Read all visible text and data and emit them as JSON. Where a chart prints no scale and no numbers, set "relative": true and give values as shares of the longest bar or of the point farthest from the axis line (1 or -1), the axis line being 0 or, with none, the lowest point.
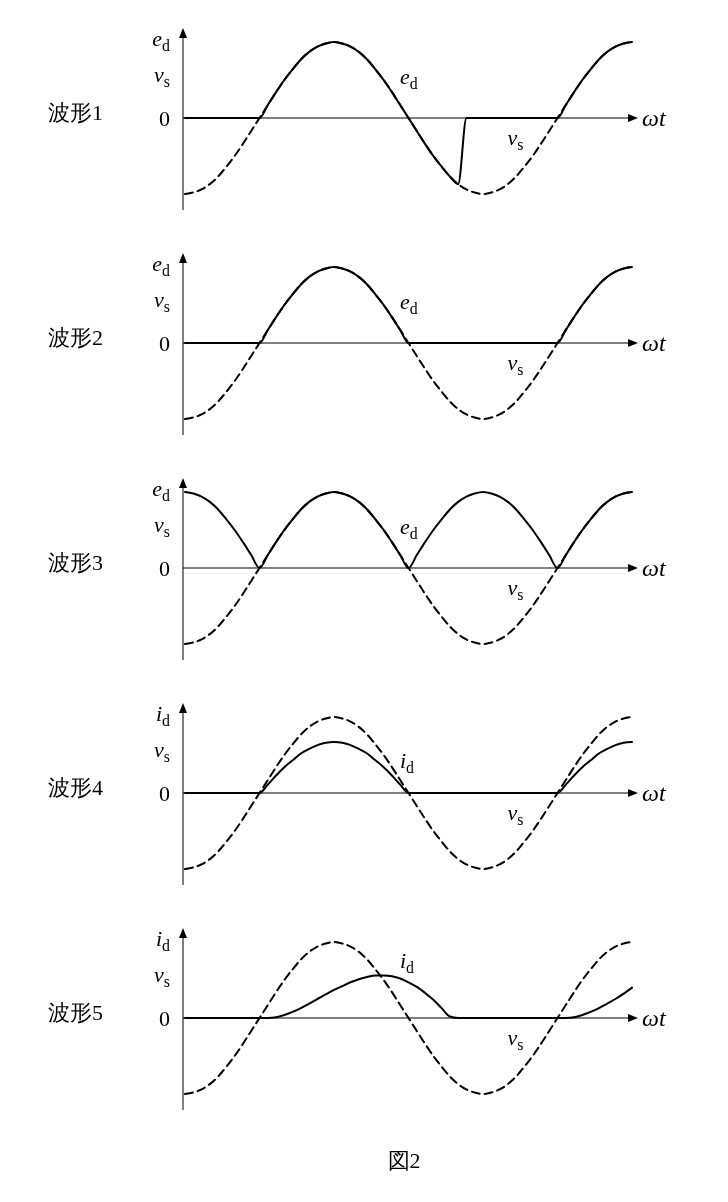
{
  "chart_data": [
    {
      "type": "line",
      "title": "波形1",
      "xlabel": "ωt",
      "ylabel": "e$_{d}$ v$_{s}$",
      "relative": true,
      "grid": false,
      "annotations": [
        "0"
      ],
      "categories": [
        null,
        null,
        null,
        null,
        null,
        null,
        null,
        null,
        null,
        null,
        null,
        null,
        null,
        null,
        null,
        null,
        null,
        null,
        null,
        null,
        null,
        null,
        null,
        null,
        null,
        null,
        null,
        null,
        null,
        null,
        null,
        null,
        null,
        null,
        null,
        null,
        null,
        null,
        null,
        null,
        null,
        null,
        null,
        null,
        null,
        null,
        null,
        null,
        null,
        null,
        null,
        null,
        null,
        null,
        null
      ],
      "series": [
        {
          "name": "e$_{d}$",
          "color": "#000000",
          "line_style": "solid",
          "values": [
            0,
            0,
            0,
            0,
            0,
            0,
            0,
            0,
            0,
            0,
            0.17,
            0.34,
            0.5,
            0.64,
            0.77,
            0.87,
            0.94,
            0.98,
            1,
            0.98,
            0.94,
            0.87,
            0.77,
            0.64,
            0.5,
            0.34,
            0.17,
            0,
            -0.17,
            -0.34,
            -0.5,
            -0.64,
            -0.77,
            -0.87,
            0,
            0,
            0,
            0,
            0,
            0,
            0,
            0,
            0,
            0,
            0,
            0,
            0.17,
            0.34,
            0.5,
            0.64,
            0.77,
            0.87,
            0.94,
            0.98,
            1
          ]
        },
        {
          "name": "v$_{s}$",
          "color": "#000000",
          "line_style": "dashed",
          "values": [
            -1,
            -0.98,
            -0.94,
            -0.87,
            -0.77,
            -0.64,
            -0.5,
            -0.34,
            -0.17,
            0,
            0.17,
            0.34,
            0.5,
            0.64,
            0.77,
            0.87,
            0.94,
            0.98,
            1,
            0.98,
            0.94,
            0.87,
            0.77,
            0.64,
            0.5,
            0.34,
            0.17,
            0,
            -0.17,
            -0.34,
            -0.5,
            -0.64,
            -0.77,
            -0.87,
            -0.94,
            -0.98,
            -1,
            -0.98,
            -0.94,
            -0.87,
            -0.77,
            -0.64,
            -0.5,
            -0.34,
            -0.17,
            0,
            0.17,
            0.34,
            0.5,
            0.64,
            0.77,
            0.87,
            0.94,
            0.98,
            1
          ]
        }
      ]
    },
    {
      "type": "line",
      "title": "波形2",
      "xlabel": "ωt",
      "ylabel": "e$_{d}$ v$_{s}$",
      "relative": true,
      "grid": false,
      "annotations": [
        "0"
      ],
      "categories": [
        null,
        null,
        null,
        null,
        null,
        null,
        null,
        null,
        null,
        null,
        null,
        null,
        null,
        null,
        null,
        null,
        null,
        null,
        null,
        null,
        null,
        null,
        null,
        null,
        null,
        null,
        null,
        null,
        null,
        null,
        null,
        null,
        null,
        null,
        null,
        null,
        null,
        null,
        null,
        null,
        null,
        null,
        null,
        null,
        null,
        null,
        null,
        null,
        null,
        null,
        null,
        null,
        null,
        null,
        null
      ],
      "series": [
        {
          "name": "e$_{d}$",
          "color": "#000000",
          "line_style": "solid",
          "values": [
            0,
            0,
            0,
            0,
            0,
            0,
            0,
            0,
            0,
            0,
            0.17,
            0.34,
            0.5,
            0.64,
            0.77,
            0.87,
            0.94,
            0.98,
            1,
            0.98,
            0.94,
            0.87,
            0.77,
            0.64,
            0.5,
            0.34,
            0.17,
            0,
            0,
            0,
            0,
            0,
            0,
            0,
            0,
            0,
            0,
            0,
            0,
            0,
            0,
            0,
            0,
            0,
            0,
            0,
            0.17,
            0.34,
            0.5,
            0.64,
            0.77,
            0.87,
            0.94,
            0.98,
            1
          ]
        },
        {
          "name": "v$_{s}$",
          "color": "#000000",
          "line_style": "dashed",
          "values": [
            -1,
            -0.98,
            -0.94,
            -0.87,
            -0.77,
            -0.64,
            -0.5,
            -0.34,
            -0.17,
            0,
            0.17,
            0.34,
            0.5,
            0.64,
            0.77,
            0.87,
            0.94,
            0.98,
            1,
            0.98,
            0.94,
            0.87,
            0.77,
            0.64,
            0.5,
            0.34,
            0.17,
            0,
            -0.17,
            -0.34,
            -0.5,
            -0.64,
            -0.77,
            -0.87,
            -0.94,
            -0.98,
            -1,
            -0.98,
            -0.94,
            -0.87,
            -0.77,
            -0.64,
            -0.5,
            -0.34,
            -0.17,
            0,
            0.17,
            0.34,
            0.5,
            0.64,
            0.77,
            0.87,
            0.94,
            0.98,
            1
          ]
        }
      ]
    },
    {
      "type": "line",
      "title": "波形3",
      "xlabel": "ωt",
      "ylabel": "e$_{d}$ v$_{s}$",
      "relative": true,
      "grid": false,
      "annotations": [
        "0"
      ],
      "categories": [
        null,
        null,
        null,
        null,
        null,
        null,
        null,
        null,
        null,
        null,
        null,
        null,
        null,
        null,
        null,
        null,
        null,
        null,
        null,
        null,
        null,
        null,
        null,
        null,
        null,
        null,
        null,
        null,
        null,
        null,
        null,
        null,
        null,
        null,
        null,
        null,
        null,
        null,
        null,
        null,
        null,
        null,
        null,
        null,
        null,
        null,
        null,
        null,
        null,
        null,
        null,
        null,
        null,
        null,
        null
      ],
      "series": [
        {
          "name": "e$_{d}$",
          "color": "#000000",
          "line_style": "solid",
          "values": [
            1,
            0.98,
            0.94,
            0.87,
            0.77,
            0.64,
            0.5,
            0.34,
            0.17,
            0,
            0.17,
            0.34,
            0.5,
            0.64,
            0.77,
            0.87,
            0.94,
            0.98,
            1,
            0.98,
            0.94,
            0.87,
            0.77,
            0.64,
            0.5,
            0.34,
            0.17,
            0,
            0.17,
            0.34,
            0.5,
            0.64,
            0.77,
            0.87,
            0.94,
            0.98,
            1,
            0.98,
            0.94,
            0.87,
            0.77,
            0.64,
            0.5,
            0.34,
            0.17,
            0,
            0.17,
            0.34,
            0.5,
            0.64,
            0.77,
            0.87,
            0.94,
            0.98,
            1
          ]
        },
        {
          "name": "v$_{s}$",
          "color": "#000000",
          "line_style": "dashed",
          "values": [
            -1,
            -0.98,
            -0.94,
            -0.87,
            -0.77,
            -0.64,
            -0.5,
            -0.34,
            -0.17,
            0,
            0.17,
            0.34,
            0.5,
            0.64,
            0.77,
            0.87,
            0.94,
            0.98,
            1,
            0.98,
            0.94,
            0.87,
            0.77,
            0.64,
            0.5,
            0.34,
            0.17,
            0,
            -0.17,
            -0.34,
            -0.5,
            -0.64,
            -0.77,
            -0.87,
            -0.94,
            -0.98,
            -1,
            -0.98,
            -0.94,
            -0.87,
            -0.77,
            -0.64,
            -0.5,
            -0.34,
            -0.17,
            0,
            0.17,
            0.34,
            0.5,
            0.64,
            0.77,
            0.87,
            0.94,
            0.98,
            1
          ]
        }
      ]
    },
    {
      "type": "line",
      "title": "波形4",
      "xlabel": "ωt",
      "ylabel": "i$_{d}$ v$_{s}$",
      "relative": true,
      "grid": false,
      "annotations": [
        "0"
      ],
      "categories": [
        null,
        null,
        null,
        null,
        null,
        null,
        null,
        null,
        null,
        null,
        null,
        null,
        null,
        null,
        null,
        null,
        null,
        null,
        null,
        null,
        null,
        null,
        null,
        null,
        null,
        null,
        null,
        null,
        null,
        null,
        null,
        null,
        null,
        null,
        null,
        null,
        null,
        null,
        null,
        null,
        null,
        null,
        null,
        null,
        null,
        null,
        null,
        null,
        null,
        null,
        null,
        null,
        null,
        null,
        null
      ],
      "series": [
        {
          "name": "i$_{d}$",
          "color": "#000000",
          "line_style": "solid",
          "values": [
            0,
            0,
            0,
            0,
            0,
            0,
            0,
            0,
            0,
            0,
            0.11,
            0.23,
            0.34,
            0.43,
            0.52,
            0.58,
            0.63,
            0.66,
            0.67,
            0.66,
            0.63,
            0.58,
            0.52,
            0.43,
            0.34,
            0.23,
            0.11,
            0,
            0,
            0,
            0,
            0,
            0,
            0,
            0,
            0,
            0,
            0,
            0,
            0,
            0,
            0,
            0,
            0,
            0,
            0,
            0.11,
            0.23,
            0.34,
            0.43,
            0.52,
            0.58,
            0.63,
            0.66,
            0.67
          ]
        },
        {
          "name": "v$_{s}$",
          "color": "#000000",
          "line_style": "dashed",
          "values": [
            -1,
            -0.98,
            -0.94,
            -0.87,
            -0.77,
            -0.64,
            -0.5,
            -0.34,
            -0.17,
            0,
            0.17,
            0.34,
            0.5,
            0.64,
            0.77,
            0.87,
            0.94,
            0.98,
            1,
            0.98,
            0.94,
            0.87,
            0.77,
            0.64,
            0.5,
            0.34,
            0.17,
            0,
            -0.17,
            -0.34,
            -0.5,
            -0.64,
            -0.77,
            -0.87,
            -0.94,
            -0.98,
            -1,
            -0.98,
            -0.94,
            -0.87,
            -0.77,
            -0.64,
            -0.5,
            -0.34,
            -0.17,
            0,
            0.17,
            0.34,
            0.5,
            0.64,
            0.77,
            0.87,
            0.94,
            0.98,
            1
          ]
        }
      ]
    },
    {
      "type": "line",
      "title": "波形5",
      "xlabel": "ωt",
      "ylabel": "i$_{d}$ v$_{s}$",
      "relative": true,
      "grid": false,
      "annotations": [
        "0",
        "図2"
      ],
      "categories": [
        null,
        null,
        null,
        null,
        null,
        null,
        null,
        null,
        null,
        null,
        null,
        null,
        null,
        null,
        null,
        null,
        null,
        null,
        null,
        null,
        null,
        null,
        null,
        null,
        null,
        null,
        null,
        null,
        null,
        null,
        null,
        null,
        null,
        null,
        null,
        null,
        null,
        null,
        null,
        null,
        null,
        null,
        null,
        null,
        null,
        null,
        null,
        null,
        null,
        null,
        null,
        null,
        null,
        null,
        null
      ],
      "series": [
        {
          "name": "i$_{d}$",
          "color": "#000000",
          "line_style": "solid",
          "values": [
            0,
            0,
            0,
            0,
            0,
            0,
            0,
            0,
            0,
            0,
            0,
            0.01,
            0.04,
            0.08,
            0.13,
            0.19,
            0.25,
            0.31,
            0.37,
            0.42,
            0.47,
            0.51,
            0.54,
            0.56,
            0.56,
            0.55,
            0.52,
            0.47,
            0.41,
            0.33,
            0.24,
            0.13,
            0.02,
            0,
            0,
            0,
            0,
            0,
            0,
            0,
            0,
            0,
            0,
            0,
            0,
            0,
            0,
            0.01,
            0.04,
            0.08,
            0.13,
            0.19,
            0.25,
            0.32,
            0.4
          ]
        },
        {
          "name": "v$_{s}$",
          "color": "#000000",
          "line_style": "dashed",
          "values": [
            -1,
            -0.98,
            -0.94,
            -0.87,
            -0.77,
            -0.64,
            -0.5,
            -0.34,
            -0.17,
            0,
            0.17,
            0.34,
            0.5,
            0.64,
            0.77,
            0.87,
            0.94,
            0.98,
            1,
            0.98,
            0.94,
            0.87,
            0.77,
            0.64,
            0.5,
            0.34,
            0.17,
            0,
            -0.17,
            -0.34,
            -0.5,
            -0.64,
            -0.77,
            -0.87,
            -0.94,
            -0.98,
            -1,
            -0.98,
            -0.94,
            -0.87,
            -0.77,
            -0.64,
            -0.5,
            -0.34,
            -0.17,
            0,
            0.17,
            0.34,
            0.5,
            0.64,
            0.77,
            0.87,
            0.94,
            0.98,
            1
          ]
        }
      ]
    }
  ]
}
